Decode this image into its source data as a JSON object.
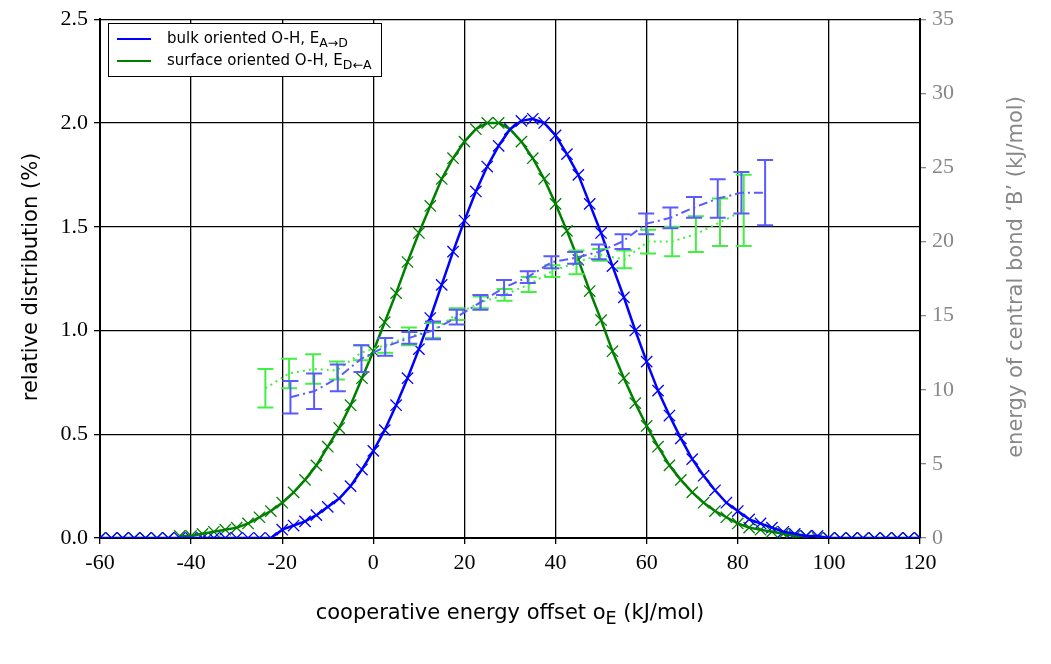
{
  "chart_data": {
    "type": "line",
    "xlabel": "cooperative energy offset o$_{E}$ (kJ/mol)",
    "ylabel": "relative distribution (%)",
    "y2label": "energy of central bond ‘B’ (kJ/mol)",
    "x": [
      -60,
      -57.5,
      -55,
      -52.5,
      -50,
      -47.5,
      -45,
      -42.5,
      -40,
      -37.5,
      -35,
      -32.5,
      -30,
      -27.5,
      -25,
      -22.5,
      -20,
      -17.5,
      -15,
      -12.5,
      -10,
      -7.5,
      -5,
      -2.5,
      0,
      2.5,
      5,
      7.5,
      10,
      12.5,
      15,
      17.5,
      20,
      22.5,
      25,
      27.5,
      30,
      32.5,
      35,
      37.5,
      40,
      42.5,
      45,
      47.5,
      50,
      52.5,
      55,
      57.5,
      60,
      62.5,
      65,
      67.5,
      70,
      72.5,
      75,
      77.5,
      80,
      82.5,
      85,
      87.5,
      90,
      92.5,
      95,
      97.5,
      100,
      102.5,
      105,
      107.5,
      110,
      112.5,
      115,
      117.5,
      120
    ],
    "series": [
      {
        "axis": "y2",
        "color": "#5a5aff",
        "line_style": "dashed",
        "x": [
          -18.2,
          -13.0,
          -7.8,
          -2.6,
          2.6,
          7.9,
          13.1,
          18.3,
          23.5,
          28.7,
          33.9,
          39.1,
          44.3,
          49.5,
          54.7,
          59.9,
          65.2,
          70.4,
          75.6,
          80.8,
          86.0
        ],
        "values": [
          9.5,
          9.9,
          10.8,
          12.1,
          12.9,
          13.5,
          14.0,
          14.9,
          15.9,
          16.9,
          17.6,
          18.6,
          18.9,
          19.3,
          20.0,
          21.2,
          21.6,
          22.3,
          22.9,
          23.3,
          23.3
        ],
        "errors": [
          1.1,
          1.2,
          0.9,
          0.9,
          0.6,
          0.4,
          0.6,
          0.5,
          0.5,
          0.5,
          0.4,
          0.4,
          0.4,
          0.5,
          0.5,
          0.7,
          0.7,
          0.7,
          1.3,
          1.4,
          2.2
        ]
      },
      {
        "axis": "y2",
        "color": "#44ee44",
        "line_style": "dotted",
        "x": [
          -23.7,
          -18.5,
          -13.2,
          -8.0,
          -2.7,
          2.6,
          7.8,
          13.1,
          18.3,
          23.6,
          28.8,
          34.1,
          39.3,
          44.6,
          49.8,
          55.1,
          60.3,
          65.6,
          70.8,
          76.1,
          81.3
        ],
        "values": [
          10.1,
          11.1,
          11.4,
          11.3,
          12.5,
          13.0,
          13.6,
          14.0,
          15.1,
          15.9,
          16.4,
          17.1,
          18.0,
          18.6,
          19.1,
          18.8,
          20.0,
          20.0,
          20.5,
          21.3,
          22.1
        ],
        "errors": [
          1.3,
          1.0,
          1.0,
          0.6,
          0.5,
          0.5,
          0.6,
          0.5,
          0.4,
          0.4,
          0.4,
          0.5,
          0.4,
          0.8,
          0.4,
          0.6,
          0.8,
          1.0,
          1.2,
          1.6,
          2.4
        ]
      },
      {
        "type": "scatter",
        "color": "#0000ff",
        "marker": "cross",
        "values": [
          0,
          0,
          0,
          0,
          0,
          0,
          0,
          0,
          0,
          0,
          0,
          0,
          0,
          0,
          0,
          0,
          0.04,
          0.06,
          0.08,
          0.11,
          0.15,
          0.19,
          0.25,
          0.33,
          0.42,
          0.52,
          0.64,
          0.77,
          0.91,
          1.06,
          1.22,
          1.38,
          1.53,
          1.67,
          1.79,
          1.89,
          1.97,
          2.01,
          2.02,
          2.0,
          1.94,
          1.85,
          1.75,
          1.61,
          1.47,
          1.31,
          1.16,
          1.0,
          0.85,
          0.71,
          0.59,
          0.48,
          0.38,
          0.3,
          0.23,
          0.17,
          0.13,
          0.09,
          0.07,
          0.05,
          0.03,
          0.02,
          0.01,
          0.01,
          0,
          0,
          0,
          0,
          0,
          0,
          0,
          0,
          0
        ]
      },
      {
        "type": "scatter",
        "color": "#008000",
        "marker": "cross",
        "values": [
          0,
          0,
          0,
          0,
          0,
          0,
          0,
          0.01,
          0.01,
          0.02,
          0.03,
          0.04,
          0.05,
          0.07,
          0.1,
          0.13,
          0.17,
          0.22,
          0.28,
          0.35,
          0.44,
          0.53,
          0.64,
          0.77,
          0.9,
          1.04,
          1.18,
          1.33,
          1.47,
          1.6,
          1.73,
          1.83,
          1.91,
          1.97,
          2.0,
          2.0,
          1.97,
          1.91,
          1.83,
          1.73,
          1.61,
          1.48,
          1.34,
          1.19,
          1.05,
          0.9,
          0.77,
          0.65,
          0.54,
          0.44,
          0.35,
          0.28,
          0.22,
          0.17,
          0.13,
          0.1,
          0.07,
          0.05,
          0.04,
          0.03,
          0.02,
          0.01,
          0.01,
          0,
          0,
          0,
          0,
          0,
          0,
          0,
          0,
          0,
          0
        ]
      },
      {
        "name": "bulk oriented O-H, E$_{A→D}$",
        "color": "#0000ff",
        "line_style": "solid",
        "values": [
          0,
          0,
          0,
          0,
          0,
          0,
          0,
          0,
          0,
          0,
          0,
          0,
          0,
          0,
          0,
          0,
          0.04,
          0.06,
          0.08,
          0.11,
          0.15,
          0.19,
          0.25,
          0.33,
          0.42,
          0.52,
          0.64,
          0.77,
          0.91,
          1.06,
          1.22,
          1.38,
          1.53,
          1.67,
          1.79,
          1.89,
          1.97,
          2.01,
          2.02,
          2.0,
          1.94,
          1.85,
          1.75,
          1.61,
          1.47,
          1.31,
          1.16,
          1.0,
          0.85,
          0.71,
          0.59,
          0.48,
          0.38,
          0.3,
          0.23,
          0.17,
          0.13,
          0.09,
          0.07,
          0.05,
          0.03,
          0.02,
          0.01,
          0.01,
          0,
          0,
          0,
          0,
          0,
          0,
          0,
          0,
          0
        ]
      },
      {
        "name": "surface oriented O-H, E$_{D←A}$",
        "color": "#008000",
        "line_style": "solid",
        "values": [
          null,
          null,
          null,
          null,
          null,
          null,
          null,
          0.01,
          0.01,
          0.02,
          0.03,
          0.04,
          0.05,
          0.07,
          0.1,
          0.13,
          0.17,
          0.22,
          0.28,
          0.35,
          0.44,
          0.53,
          0.64,
          0.77,
          0.9,
          1.04,
          1.18,
          1.33,
          1.47,
          1.6,
          1.73,
          1.83,
          1.91,
          1.97,
          2.0,
          2.0,
          1.97,
          1.91,
          1.83,
          1.73,
          1.61,
          1.48,
          1.34,
          1.19,
          1.05,
          0.9,
          0.77,
          0.65,
          0.54,
          0.44,
          0.35,
          0.28,
          0.22,
          0.17,
          0.13,
          0.1,
          0.07,
          0.05,
          0.04,
          0.03,
          0.02,
          0.01,
          0.01,
          null,
          null,
          null,
          null,
          null,
          null,
          null,
          null,
          null,
          null
        ]
      }
    ],
    "xlim": [
      -60,
      120
    ],
    "xticks": [
      -60,
      -40,
      -20,
      0,
      20,
      40,
      60,
      80,
      100,
      120
    ],
    "ylim": [
      0,
      2.5
    ],
    "yticks": [
      {
        "value": 0,
        "label": "0.0"
      },
      {
        "value": 0.5,
        "label": "0.5"
      },
      {
        "value": 1,
        "label": "1.0"
      },
      {
        "value": 1.5,
        "label": "1.5"
      },
      {
        "value": 2,
        "label": "2.0"
      },
      {
        "value": 2.5,
        "label": "2.5"
      }
    ],
    "y2lim": [
      0,
      35
    ],
    "y2ticks": [
      0,
      5,
      10,
      15,
      20,
      25,
      30,
      35
    ],
    "grid": true,
    "legend": "top left"
  }
}
